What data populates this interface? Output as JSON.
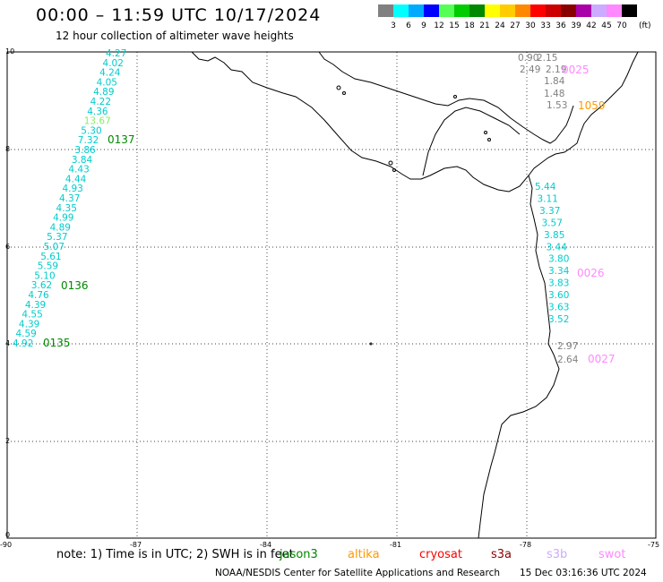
{
  "header": {
    "title": "00:00 – 11:59 UTC 10/17/2024",
    "subtitle": "12 hour collection of altimeter wave heights"
  },
  "legend": {
    "unit": "(ft)",
    "ticks": [
      "3",
      "6",
      "9",
      "12",
      "15",
      "18",
      "21",
      "24",
      "27",
      "30",
      "33",
      "36",
      "39",
      "42",
      "45",
      "70"
    ],
    "colors": [
      "#808080",
      "#00ffff",
      "#00aaff",
      "#0000ff",
      "#55ff55",
      "#00cc00",
      "#008800",
      "#ffff00",
      "#ffcc00",
      "#ff8800",
      "#ff0000",
      "#cc0000",
      "#880000",
      "#aa00aa",
      "#ccaaff",
      "#ff88ff",
      "#000000"
    ]
  },
  "axes": {
    "lat_labels": [
      "10",
      "8",
      "6",
      "4",
      "2",
      "0"
    ],
    "lon_labels": [
      "-90",
      "-87",
      "-84",
      "-81",
      "-78",
      "-75"
    ]
  },
  "tracks": [
    {
      "id": "0137",
      "label_color": "#008800",
      "points": [
        {
          "v": "4.27",
          "c": "#00cccc"
        },
        {
          "v": "4.02",
          "c": "#00cccc"
        },
        {
          "v": "4.24",
          "c": "#00cccc"
        },
        {
          "v": "4.05",
          "c": "#00cccc"
        },
        {
          "v": "4.89",
          "c": "#00cccc"
        },
        {
          "v": "4.22",
          "c": "#00cccc"
        },
        {
          "v": "4.36",
          "c": "#00cccc"
        },
        {
          "v": "13.67",
          "c": "#88ee66"
        },
        {
          "v": "5.30",
          "c": "#00cccc"
        },
        {
          "v": "7.32",
          "c": "#00cccc"
        }
      ]
    },
    {
      "id": "0136",
      "label_color": "#008800",
      "points": [
        {
          "v": "3.86",
          "c": "#00cccc"
        },
        {
          "v": "3.84",
          "c": "#00cccc"
        },
        {
          "v": "4.43",
          "c": "#00cccc"
        },
        {
          "v": "4.44",
          "c": "#00cccc"
        },
        {
          "v": "4.93",
          "c": "#00cccc"
        },
        {
          "v": "4.37",
          "c": "#00cccc"
        },
        {
          "v": "4.35",
          "c": "#00cccc"
        },
        {
          "v": "4.99",
          "c": "#00cccc"
        },
        {
          "v": "4.89",
          "c": "#00cccc"
        },
        {
          "v": "5.37",
          "c": "#00cccc"
        },
        {
          "v": "5.07",
          "c": "#00cccc"
        },
        {
          "v": "5.61",
          "c": "#00cccc"
        },
        {
          "v": "5.59",
          "c": "#00cccc"
        },
        {
          "v": "5.10",
          "c": "#00cccc"
        },
        {
          "v": "3.62",
          "c": "#00cccc"
        }
      ]
    },
    {
      "id": "0135",
      "label_color": "#008800",
      "points": [
        {
          "v": "4.76",
          "c": "#00cccc"
        },
        {
          "v": "4.39",
          "c": "#00cccc"
        },
        {
          "v": "4.55",
          "c": "#00cccc"
        },
        {
          "v": "4.39",
          "c": "#00cccc"
        },
        {
          "v": "4.59",
          "c": "#00cccc"
        },
        {
          "v": "4.92",
          "c": "#00cccc"
        }
      ]
    },
    {
      "id": "0026",
      "label_color": "#ff88ff",
      "points": [
        {
          "v": "5.44",
          "c": "#00cccc"
        },
        {
          "v": "3.11",
          "c": "#00cccc"
        },
        {
          "v": "3.37",
          "c": "#00cccc"
        },
        {
          "v": "3.57",
          "c": "#00cccc"
        },
        {
          "v": "3.85",
          "c": "#00cccc"
        },
        {
          "v": "3.44",
          "c": "#00cccc"
        },
        {
          "v": "3.80",
          "c": "#00cccc"
        },
        {
          "v": "3.34",
          "c": "#00cccc"
        },
        {
          "v": "3.83",
          "c": "#00cccc"
        },
        {
          "v": "3.60",
          "c": "#00cccc"
        },
        {
          "v": "3.63",
          "c": "#00cccc"
        },
        {
          "v": "3.52",
          "c": "#00cccc"
        }
      ]
    },
    {
      "id": "0027",
      "label_color": "#ff88ff",
      "points": [
        {
          "v": "2.97",
          "c": "#808080"
        },
        {
          "v": "2.64",
          "c": "#808080"
        }
      ]
    },
    {
      "id": "0025",
      "label_color": "#ff88ff",
      "points": [
        {
          "v": "0.90",
          "c": "#808080"
        },
        {
          "v": "2.15",
          "c": "#808080"
        },
        {
          "v": "2.49",
          "c": "#808080"
        },
        {
          "v": "2.19",
          "c": "#808080"
        },
        {
          "v": "1.84",
          "c": "#808080"
        },
        {
          "v": "1.48",
          "c": "#808080"
        },
        {
          "v": "1.53",
          "c": "#808080"
        }
      ]
    },
    {
      "id": "1059",
      "label_color": "#ff9900",
      "points": []
    }
  ],
  "footer": {
    "note": "note: 1) Time is in UTC; 2) SWH is in feet",
    "satellites": [
      {
        "name": "jason3",
        "color": "#008800"
      },
      {
        "name": "altika",
        "color": "#ff9900"
      },
      {
        "name": "cryosat",
        "color": "#ff0000"
      },
      {
        "name": "s3a",
        "color": "#880000"
      },
      {
        "name": "s3b",
        "color": "#ccaaff"
      },
      {
        "name": "swot",
        "color": "#ff88ff"
      }
    ],
    "credit": "NOAA/NESDIS Center for Satellite Applications and Research",
    "timestamp": "15 Dec 03:16:36 UTC 2024"
  }
}
